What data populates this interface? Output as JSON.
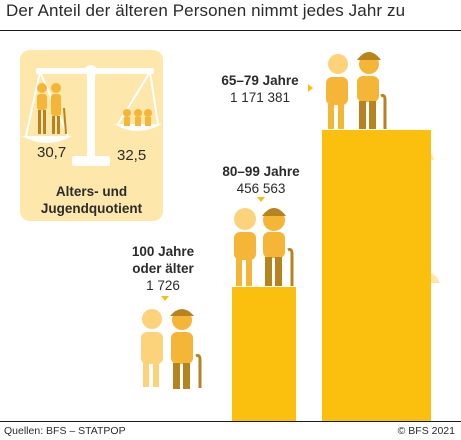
{
  "title": "Der Anteil der älteren Personen nimmt jedes Jahr zu",
  "quotient": {
    "left_value": "30,7",
    "right_value": "32,5",
    "caption_line1": "Alters- und",
    "caption_line2": "Jugendquotient"
  },
  "groups": [
    {
      "age_line1": "65–79 Jahre",
      "age_line2": "",
      "count": "1 171 381",
      "value": 1171381
    },
    {
      "age_line1": "80–99 Jahre",
      "age_line2": "",
      "count": "456 563",
      "value": 456563
    },
    {
      "age_line1": "100 Jahre",
      "age_line2": "oder älter",
      "count": "1 726",
      "value": 1726
    }
  ],
  "footer": {
    "source": "Quellen: BFS – STATPOP",
    "copyright": "© BFS 2021"
  },
  "colors": {
    "bar": "#fbbf0d",
    "panel": "#fde7ab",
    "figure_light": "#f5b537",
    "figure_dark": "#b5831f",
    "figure_pale": "#fcd27a",
    "cloud": "#fde7ab"
  }
}
